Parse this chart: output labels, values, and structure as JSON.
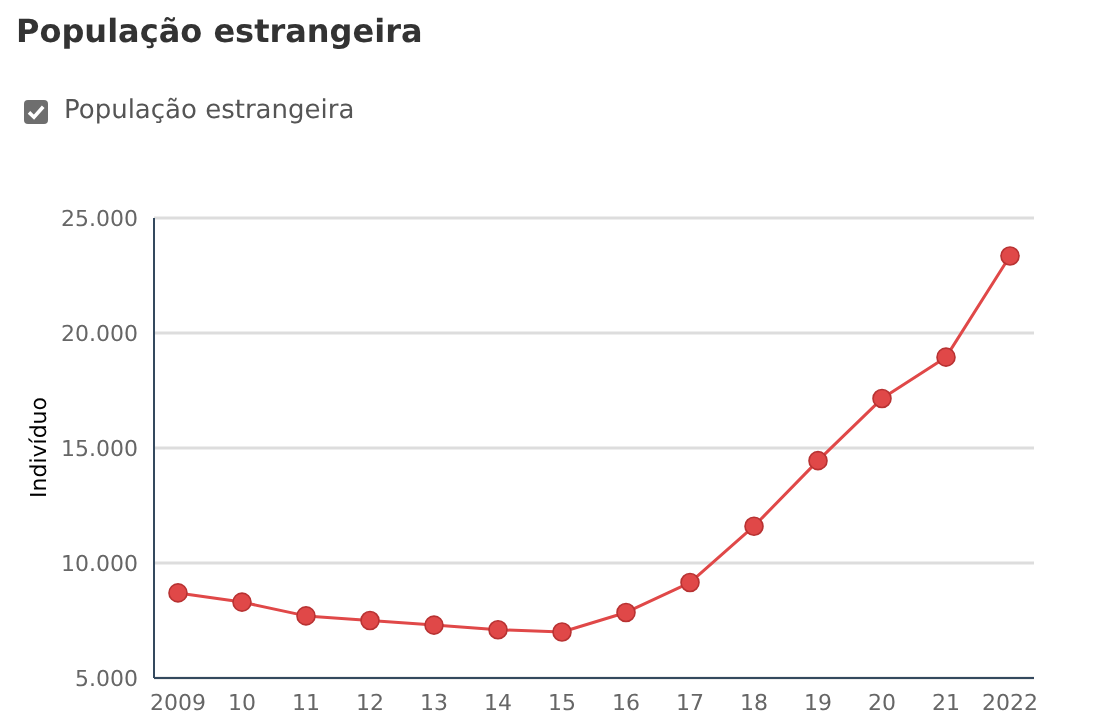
{
  "chart_data": {
    "type": "line",
    "title": "População estrangeira",
    "ylabel": "Indivíduo",
    "categories": [
      "2009",
      "10",
      "11",
      "12",
      "13",
      "14",
      "15",
      "16",
      "17",
      "18",
      "19",
      "20",
      "21",
      "2022"
    ],
    "series": [
      {
        "name": "População estrangeira",
        "color": "#e04848",
        "values": [
          8700,
          8300,
          7700,
          7500,
          7300,
          7100,
          7000,
          7850,
          9150,
          11600,
          14450,
          17150,
          18950,
          23350
        ]
      }
    ],
    "ylim": [
      5000,
      25000
    ],
    "yticks": [
      {
        "value": 5000,
        "label": "5.000"
      },
      {
        "value": 10000,
        "label": "10.000"
      },
      {
        "value": 15000,
        "label": "15.000"
      },
      {
        "value": 20000,
        "label": "20.000"
      },
      {
        "value": 25000,
        "label": "25.000"
      }
    ],
    "grid": "y",
    "legend": "top left",
    "marker": "circle",
    "line_style": "solid"
  }
}
